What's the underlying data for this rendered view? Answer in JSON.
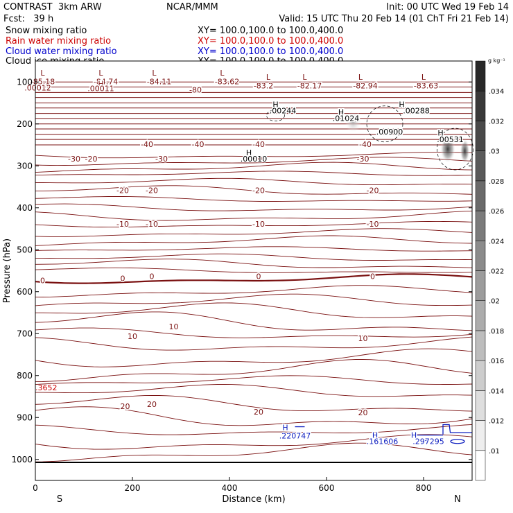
{
  "header": {
    "left_line1": "CONTRAST  3km ARW",
    "center_line1": "NCAR/MMM",
    "right_line1": "Init: 00 UTC Wed 19 Feb 14",
    "left_line2": "Fcst:   39 h",
    "right_line2": "Valid: 15 UTC Thu 20 Feb 14 (01 ChT Fri 21 Feb 14)"
  },
  "fields": [
    {
      "label": "Snow mixing ratio",
      "xy": "XY= 100.0,100.0 to 100.0,400.0",
      "color": "#000000"
    },
    {
      "label": "Rain water mixing ratio",
      "xy": "XY= 100.0,100.0 to 100.0,400.0",
      "color": "#cc0000"
    },
    {
      "label": "Cloud water mixing ratio",
      "xy": "XY= 100.0,100.0 to 100.0,400.0",
      "color": "#0000cc"
    },
    {
      "label": "Cloud ice mixing ratio",
      "xy": "XY= 100.0,100.0 to 100.0,400.0",
      "color": "#000000"
    }
  ],
  "colors": {
    "isotherm": "#7a1010",
    "cloud_water": "#1020c0",
    "rain": "#cc0000"
  },
  "chart_data": {
    "type": "contour",
    "xlabel": "Distance (km)",
    "ylabel": "Pressure (hPa)",
    "xlim": [
      0,
      900
    ],
    "ylim": [
      1050,
      50
    ],
    "xticks": [
      0,
      200,
      400,
      600,
      800
    ],
    "yticks": [
      100,
      200,
      300,
      400,
      500,
      600,
      700,
      800,
      900,
      1000
    ],
    "endpoint_labels": {
      "left": "S",
      "right": "N"
    },
    "colorbar": {
      "unit": "g kg⁻¹",
      "ticks": [
        ".01",
        ".012",
        ".014",
        ".016",
        ".018",
        ".02",
        ".022",
        ".024",
        ".026",
        ".028",
        ".03",
        ".032",
        ".034"
      ]
    },
    "isotherm_labels": [
      {
        "x": 260,
        "p": 290,
        "text": "-30"
      },
      {
        "x": 80,
        "p": 290,
        "text": "-30"
      },
      {
        "x": 115,
        "p": 290,
        "text": "-20"
      },
      {
        "x": 455,
        "p": 290,
        "text": "-30"
      },
      {
        "x": 675,
        "p": 290,
        "text": "-30"
      },
      {
        "x": 230,
        "p": 255,
        "text": "-40"
      },
      {
        "x": 335,
        "p": 255,
        "text": "-40"
      },
      {
        "x": 460,
        "p": 255,
        "text": "-40"
      },
      {
        "x": 680,
        "p": 255,
        "text": "-40"
      },
      {
        "x": 330,
        "p": 125,
        "text": "-80"
      },
      {
        "x": 180,
        "p": 365,
        "text": "-20"
      },
      {
        "x": 240,
        "p": 365,
        "text": "-20"
      },
      {
        "x": 460,
        "p": 365,
        "text": "-20"
      },
      {
        "x": 695,
        "p": 365,
        "text": "-20"
      },
      {
        "x": 180,
        "p": 445,
        "text": "-10"
      },
      {
        "x": 240,
        "p": 445,
        "text": "-10"
      },
      {
        "x": 460,
        "p": 445,
        "text": "-10"
      },
      {
        "x": 695,
        "p": 445,
        "text": "-10"
      },
      {
        "x": 15,
        "p": 580,
        "text": "0"
      },
      {
        "x": 180,
        "p": 575,
        "text": "0"
      },
      {
        "x": 240,
        "p": 570,
        "text": "0"
      },
      {
        "x": 460,
        "p": 570,
        "text": "0"
      },
      {
        "x": 695,
        "p": 570,
        "text": "0"
      },
      {
        "x": 200,
        "p": 713,
        "text": "10"
      },
      {
        "x": 285,
        "p": 690,
        "text": "10"
      },
      {
        "x": 675,
        "p": 718,
        "text": "10"
      },
      {
        "x": 185,
        "p": 880,
        "text": "20"
      },
      {
        "x": 240,
        "p": 875,
        "text": "20"
      },
      {
        "x": 460,
        "p": 893,
        "text": "20"
      },
      {
        "x": 675,
        "p": 895,
        "text": "20"
      }
    ],
    "top_extrema": [
      {
        "x": 15,
        "p": 85,
        "text": "L"
      },
      {
        "x": 15,
        "p": 105,
        "text": "-85.18"
      },
      {
        "x": 5,
        "p": 120,
        "text": ".00012"
      },
      {
        "x": 135,
        "p": 85,
        "text": "L"
      },
      {
        "x": 145,
        "p": 105,
        "text": "-84.74"
      },
      {
        "x": 135,
        "p": 110,
        "text": "H"
      },
      {
        "x": 135,
        "p": 122,
        "text": ".00011"
      },
      {
        "x": 245,
        "p": 85,
        "text": "L"
      },
      {
        "x": 255,
        "p": 105,
        "text": "-84.11"
      },
      {
        "x": 385,
        "p": 85,
        "text": "L"
      },
      {
        "x": 395,
        "p": 105,
        "text": "-83.62"
      },
      {
        "x": 480,
        "p": 95,
        "text": "L"
      },
      {
        "x": 470,
        "p": 115,
        "text": "-83.2"
      },
      {
        "x": 555,
        "p": 95,
        "text": "L"
      },
      {
        "x": 565,
        "p": 115,
        "text": "-82.17"
      },
      {
        "x": 670,
        "p": 95,
        "text": "L"
      },
      {
        "x": 680,
        "p": 115,
        "text": "-82.94"
      },
      {
        "x": 800,
        "p": 95,
        "text": "L"
      },
      {
        "x": 805,
        "p": 115,
        "text": "-83.63"
      }
    ],
    "snow_ice_extrema": [
      {
        "x": 495,
        "p": 160,
        "text": "H"
      },
      {
        "x": 510,
        "p": 175,
        "text": ".00244"
      },
      {
        "x": 630,
        "p": 178,
        "text": "H"
      },
      {
        "x": 640,
        "p": 193,
        "text": ".01024"
      },
      {
        "x": 755,
        "p": 160,
        "text": "H"
      },
      {
        "x": 785,
        "p": 175,
        "text": ".00288"
      },
      {
        "x": 730,
        "p": 225,
        "text": ".00900"
      },
      {
        "x": 835,
        "p": 228,
        "text": "H"
      },
      {
        "x": 855,
        "p": 243,
        "text": ".00531"
      },
      {
        "x": 440,
        "p": 275,
        "text": "H"
      },
      {
        "x": 450,
        "p": 290,
        "text": ".00010"
      }
    ],
    "rain_labels": [
      {
        "x": 0,
        "p": 835,
        "text": ".3652"
      }
    ],
    "cloud_water_extrema": [
      {
        "x": 515,
        "p": 930,
        "text": "H"
      },
      {
        "x": 535,
        "p": 950,
        "text": ".220747"
      },
      {
        "x": 700,
        "p": 948,
        "text": "H"
      },
      {
        "x": 715,
        "p": 963,
        "text": ".161606"
      },
      {
        "x": 780,
        "p": 948,
        "text": "H"
      },
      {
        "x": 810,
        "p": 963,
        "text": ".297295"
      }
    ]
  }
}
